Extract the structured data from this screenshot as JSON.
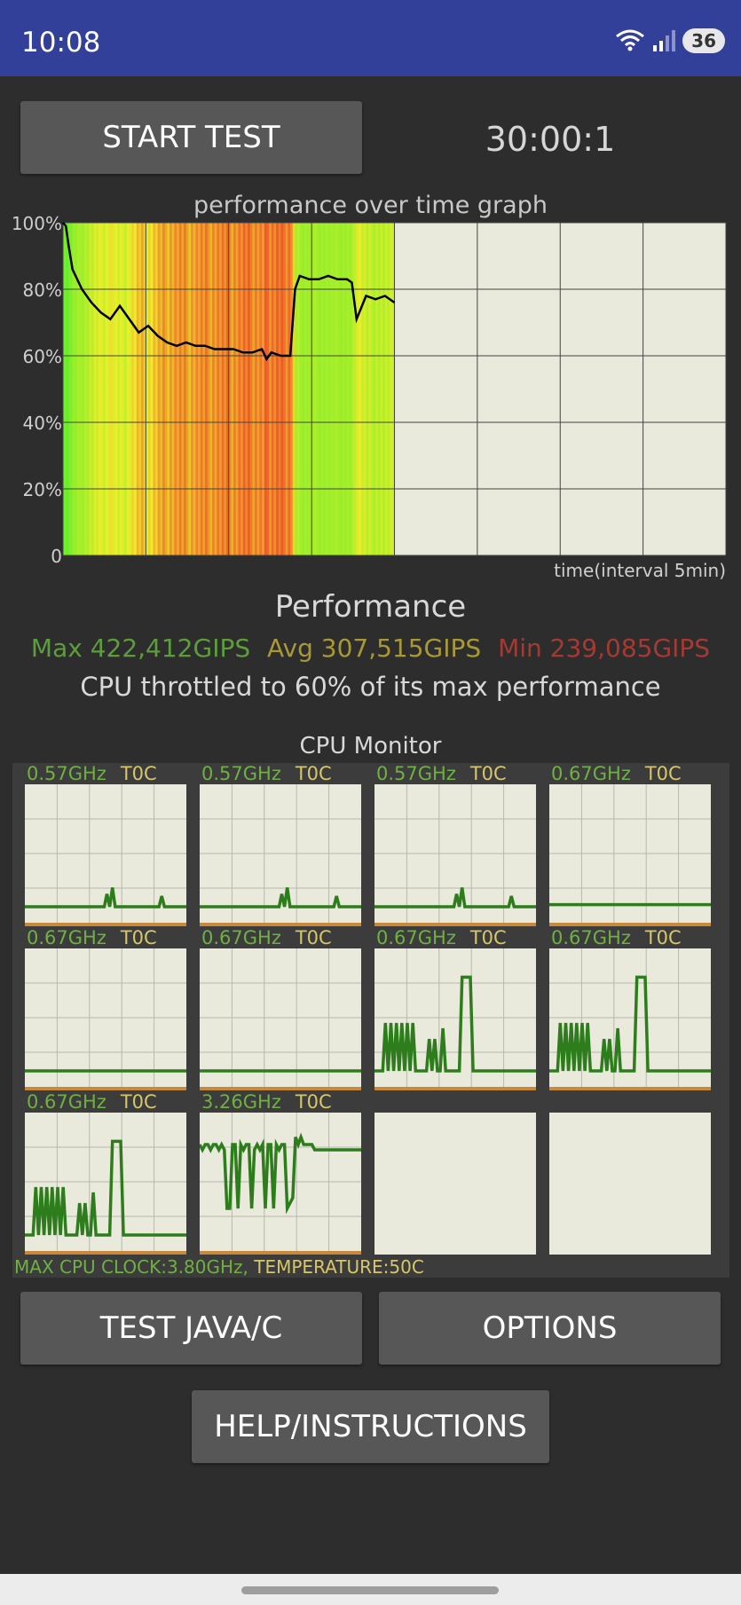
{
  "status_bar": {
    "time": "10:08",
    "battery": "36"
  },
  "buttons": {
    "start_test": "START TEST",
    "test_java": "TEST JAVA/C",
    "options": "OPTIONS",
    "help": "HELP/INSTRUCTIONS"
  },
  "timer": "30:00:1",
  "graph": {
    "title": "performance over time graph",
    "xlabel": "time(interval 5min)"
  },
  "chart_data": {
    "type": "area",
    "title": "performance over time graph",
    "xlabel": "time(interval 5min)",
    "ylabel": "",
    "y_ticks": [
      "100%",
      "80%",
      "60%",
      "40%",
      "20%",
      "0"
    ],
    "ylim": [
      0,
      100
    ],
    "xlim": [
      0,
      35
    ],
    "grid": true,
    "x": [
      0,
      0.3,
      0.6,
      1,
      1.5,
      2,
      3,
      4,
      5,
      6,
      7,
      8,
      9,
      10,
      11,
      12,
      13,
      14,
      15,
      16,
      17,
      18,
      19,
      20,
      21,
      21.5,
      22,
      23,
      24,
      24.5,
      25,
      26,
      27,
      28,
      29,
      30,
      30.5,
      31,
      32,
      33,
      34,
      35
    ],
    "values": [
      100,
      99,
      93,
      86,
      83,
      80,
      76,
      73,
      71,
      75,
      71,
      67,
      69,
      66,
      64,
      63,
      64,
      63,
      63,
      62,
      62,
      62,
      61,
      61,
      62,
      59,
      61,
      60,
      60,
      80,
      84,
      83,
      83,
      84,
      83,
      83,
      82,
      71,
      78,
      77,
      78,
      76
    ]
  },
  "performance": {
    "title": "Performance",
    "max": "Max 422,412GIPS",
    "avg": "Avg 307,515GIPS",
    "min": "Min 239,085GIPS",
    "throttle_text": "CPU throttled to 60% of its max performance"
  },
  "cpu_monitor": {
    "title": "CPU Monitor",
    "cores": [
      {
        "freq": "0.57GHz",
        "temp": "T0C",
        "load": [
          0,
          0,
          0,
          0,
          0,
          0,
          0,
          0,
          0,
          0,
          0,
          0,
          0,
          0,
          0,
          0,
          0,
          0,
          0,
          0,
          0,
          0,
          0,
          0,
          0,
          0,
          0,
          0,
          0,
          0,
          12,
          0,
          18,
          0,
          0,
          0,
          0,
          0,
          0,
          0,
          0,
          0,
          0,
          0,
          0,
          0,
          0,
          0,
          0,
          0,
          10,
          0,
          0,
          0,
          0,
          0,
          0,
          0,
          0,
          0
        ]
      },
      {
        "freq": "0.57GHz",
        "temp": "T0C",
        "load": [
          0,
          0,
          0,
          0,
          0,
          0,
          0,
          0,
          0,
          0,
          0,
          0,
          0,
          0,
          0,
          0,
          0,
          0,
          0,
          0,
          0,
          0,
          0,
          0,
          0,
          0,
          0,
          0,
          0,
          0,
          12,
          0,
          18,
          0,
          0,
          0,
          0,
          0,
          0,
          0,
          0,
          0,
          0,
          0,
          0,
          0,
          0,
          0,
          0,
          0,
          10,
          0,
          0,
          0,
          0,
          0,
          0,
          0,
          0,
          0
        ]
      },
      {
        "freq": "0.57GHz",
        "temp": "T0C",
        "load": [
          0,
          0,
          0,
          0,
          0,
          0,
          0,
          0,
          0,
          0,
          0,
          0,
          0,
          0,
          0,
          0,
          0,
          0,
          0,
          0,
          0,
          0,
          0,
          0,
          0,
          0,
          0,
          0,
          0,
          0,
          12,
          0,
          18,
          0,
          0,
          0,
          0,
          0,
          0,
          0,
          0,
          0,
          0,
          0,
          0,
          0,
          0,
          0,
          0,
          0,
          10,
          0,
          0,
          0,
          0,
          0,
          0,
          0,
          0,
          0
        ]
      },
      {
        "freq": "0.67GHz",
        "temp": "T0C",
        "load": [
          2,
          2,
          2,
          2,
          2,
          2,
          2,
          2,
          2,
          2,
          2,
          2,
          2,
          2,
          2,
          2,
          2,
          2,
          2,
          2,
          2,
          2,
          2,
          2,
          2,
          2,
          2,
          2,
          2,
          2,
          2,
          2,
          2,
          2,
          2,
          2,
          2,
          2,
          2,
          2,
          2,
          2,
          2,
          2,
          2,
          2,
          2,
          2,
          2,
          2,
          2,
          2,
          2,
          2,
          2,
          2,
          2,
          2,
          2,
          2
        ]
      },
      {
        "freq": "0.67GHz",
        "temp": "T0C",
        "load": [
          0,
          0,
          0,
          0,
          0,
          0,
          0,
          0,
          0,
          0,
          0,
          0,
          0,
          0,
          0,
          0,
          0,
          0,
          0,
          0,
          0,
          0,
          0,
          0,
          0,
          0,
          0,
          0,
          0,
          0,
          0,
          0,
          0,
          0,
          0,
          0,
          0,
          0,
          0,
          0,
          0,
          0,
          0,
          0,
          0,
          0,
          0,
          0,
          0,
          0,
          0,
          0,
          0,
          0,
          0,
          0,
          0,
          0,
          0,
          0
        ]
      },
      {
        "freq": "0.67GHz",
        "temp": "T0C",
        "load": [
          0,
          0,
          0,
          0,
          0,
          0,
          0,
          0,
          0,
          0,
          0,
          0,
          0,
          0,
          0,
          0,
          0,
          0,
          0,
          0,
          0,
          0,
          0,
          0,
          0,
          0,
          0,
          0,
          0,
          0,
          0,
          0,
          0,
          0,
          0,
          0,
          0,
          0,
          0,
          0,
          0,
          0,
          0,
          0,
          0,
          0,
          0,
          0,
          0,
          0,
          0,
          0,
          0,
          0,
          0,
          0,
          0,
          0,
          0,
          0
        ]
      },
      {
        "freq": "0.67GHz",
        "temp": "T0C",
        "load": [
          0,
          0,
          0,
          0,
          45,
          0,
          45,
          0,
          45,
          0,
          45,
          0,
          45,
          0,
          45,
          0,
          0,
          0,
          0,
          0,
          30,
          0,
          30,
          0,
          0,
          40,
          0,
          0,
          0,
          0,
          0,
          0,
          88,
          88,
          88,
          88,
          0,
          0,
          0,
          0,
          0,
          0,
          0,
          0,
          0,
          0,
          0,
          0,
          0,
          0,
          0,
          0,
          0,
          0,
          0,
          0,
          0,
          0,
          0,
          0
        ]
      },
      {
        "freq": "0.67GHz",
        "temp": "T0C",
        "load": [
          0,
          0,
          0,
          0,
          45,
          0,
          45,
          0,
          45,
          0,
          45,
          0,
          45,
          0,
          45,
          0,
          0,
          0,
          0,
          0,
          30,
          0,
          30,
          0,
          0,
          40,
          0,
          0,
          0,
          0,
          0,
          0,
          88,
          88,
          88,
          88,
          0,
          0,
          0,
          0,
          0,
          0,
          0,
          0,
          0,
          0,
          0,
          0,
          0,
          0,
          0,
          0,
          0,
          0,
          0,
          0,
          0,
          0,
          0,
          0
        ]
      },
      {
        "freq": "0.67GHz",
        "temp": "T0C",
        "load": [
          0,
          0,
          0,
          0,
          45,
          0,
          45,
          0,
          45,
          0,
          45,
          0,
          45,
          0,
          45,
          0,
          0,
          0,
          0,
          0,
          30,
          0,
          30,
          0,
          0,
          40,
          0,
          0,
          0,
          0,
          0,
          0,
          88,
          88,
          88,
          88,
          0,
          0,
          0,
          0,
          0,
          0,
          0,
          0,
          0,
          0,
          0,
          0,
          0,
          0,
          0,
          0,
          0,
          0,
          0,
          0,
          0,
          0,
          0,
          0
        ]
      },
      {
        "freq": "3.26GHz",
        "temp": "T0C",
        "load": [
          85,
          80,
          85,
          85,
          80,
          85,
          85,
          80,
          85,
          80,
          25,
          25,
          85,
          85,
          25,
          85,
          80,
          85,
          85,
          25,
          80,
          85,
          80,
          85,
          25,
          85,
          85,
          25,
          85,
          80,
          85,
          85,
          25,
          30,
          35,
          92,
          85,
          92,
          85,
          85,
          85,
          85,
          80,
          80,
          80,
          80,
          80,
          80,
          80,
          80,
          80,
          80,
          80,
          80,
          80,
          80,
          80,
          80,
          80,
          80
        ]
      },
      {
        "freq": "",
        "temp": "",
        "load": []
      },
      {
        "freq": "",
        "temp": "",
        "load": []
      }
    ],
    "footer_clock": "MAX CPU CLOCK:3.80GHz,",
    "footer_temp": "TEMPERATURE:50C"
  },
  "colors": {
    "status_bar": "#33409a",
    "background": "#2d2d2d",
    "button": "#575757",
    "graph_bg": "#e9e9dc",
    "perf_line": "#000000",
    "cpu_line": "#2e7d1c",
    "max_color": "#5c9e3b",
    "avg_color": "#a99936",
    "min_color": "#a43a32"
  }
}
